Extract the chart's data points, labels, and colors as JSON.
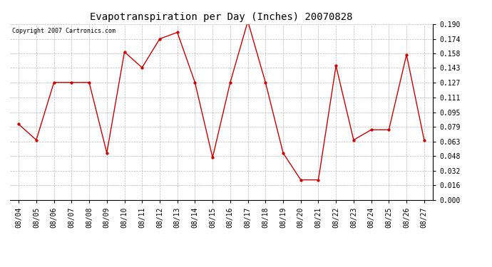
{
  "title": "Evapotranspiration per Day (Inches) 20070828",
  "copyright_text": "Copyright 2007 Cartronics.com",
  "dates": [
    "08/04",
    "08/05",
    "08/06",
    "08/07",
    "08/08",
    "08/09",
    "08/10",
    "08/11",
    "08/12",
    "08/13",
    "08/14",
    "08/15",
    "08/16",
    "08/17",
    "08/18",
    "08/19",
    "08/20",
    "08/21",
    "08/22",
    "08/23",
    "08/24",
    "08/25",
    "08/26",
    "08/27"
  ],
  "values": [
    0.082,
    0.065,
    0.127,
    0.127,
    0.127,
    0.051,
    0.16,
    0.143,
    0.174,
    0.181,
    0.127,
    0.046,
    0.127,
    0.193,
    0.127,
    0.051,
    0.022,
    0.022,
    0.145,
    0.065,
    0.076,
    0.076,
    0.157,
    0.065
  ],
  "line_color": "#cc0000",
  "marker": "o",
  "marker_size": 2.5,
  "bg_color": "#ffffff",
  "grid_color": "#bbbbbb",
  "ylim": [
    0.0,
    0.19
  ],
  "yticks": [
    0.0,
    0.016,
    0.032,
    0.048,
    0.063,
    0.079,
    0.095,
    0.111,
    0.127,
    0.143,
    0.158,
    0.174,
    0.19
  ],
  "title_fontsize": 10,
  "copyright_fontsize": 6,
  "tick_fontsize": 7,
  "fig_width": 6.9,
  "fig_height": 3.75,
  "dpi": 100
}
